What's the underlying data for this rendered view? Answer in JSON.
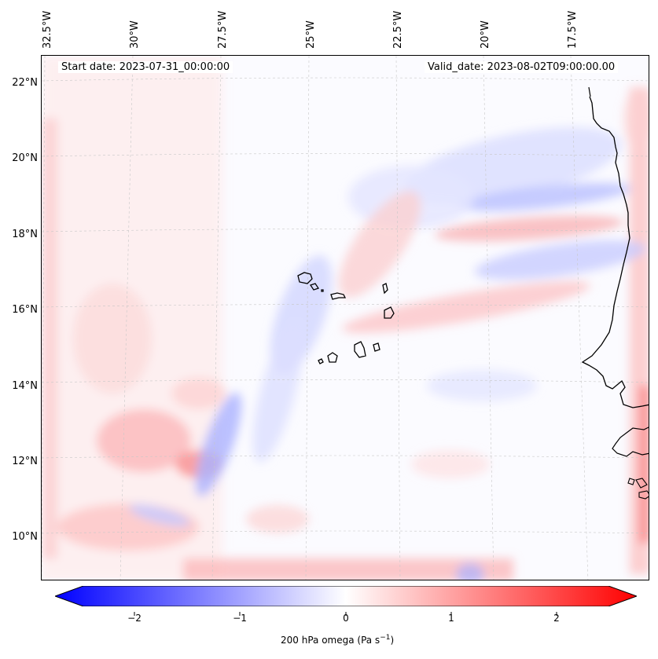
{
  "header": {
    "start_date": "Start date: 2023-07-31_00:00:00",
    "valid_date": "Valid_date: 2023-08-02T09:00:00.00"
  },
  "axes": {
    "longitude_labels": [
      "32.5°W",
      "30°W",
      "27.5°W",
      "25°W",
      "22.5°W",
      "20°W",
      "17.5°W"
    ],
    "latitude_labels": [
      "22°N",
      "20°N",
      "18°N",
      "16°N",
      "14°N",
      "12°N",
      "10°N"
    ]
  },
  "colorbar": {
    "label_text": "200 hPa omega (Pa s",
    "label_exp": "−1",
    "label_close": ")",
    "ticks": [
      "−2",
      "−1",
      "0",
      "1",
      "2"
    ],
    "range": [
      -2.7,
      2.7
    ],
    "colors": {
      "min": "#0000ff",
      "mid": "#ffffff",
      "max": "#ff0000"
    }
  },
  "map": {
    "projection": "Lambert conformal",
    "coastline_color": "#000000",
    "gridlines": "dashed light gray"
  }
}
